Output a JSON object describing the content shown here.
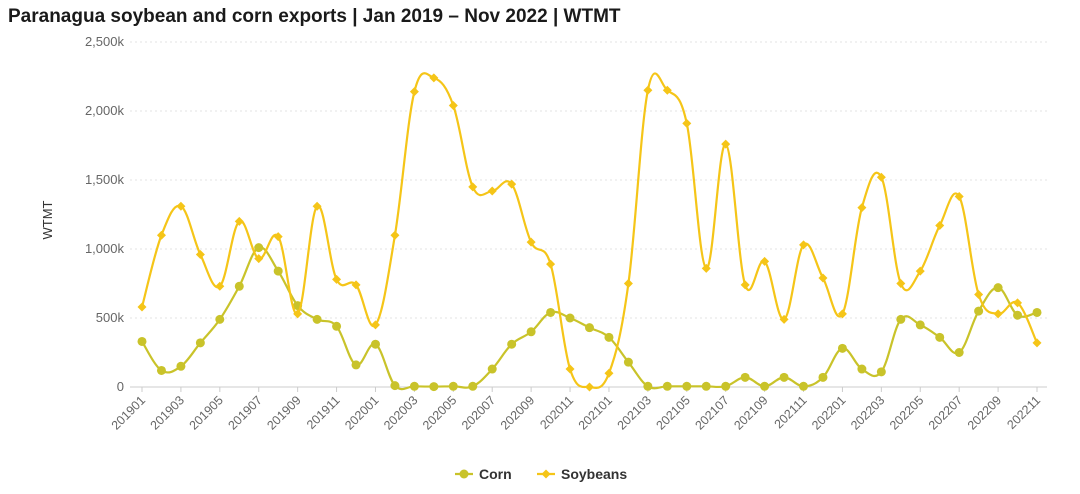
{
  "chart_data": {
    "type": "line",
    "title": "Paranagua soybean and corn exports | Jan 2019 – Nov 2022 | WTMT",
    "ylabel": "WTMT",
    "xlabel": "",
    "ylim": [
      0,
      2500000
    ],
    "y_ticks": [
      {
        "value": 0,
        "label": "0"
      },
      {
        "value": 500000,
        "label": "500k"
      },
      {
        "value": 1000000,
        "label": "1,000k"
      },
      {
        "value": 1500000,
        "label": "1,500k"
      },
      {
        "value": 2000000,
        "label": "2,000k"
      },
      {
        "value": 2500000,
        "label": "2,500k"
      }
    ],
    "x": [
      "201901",
      "201902",
      "201903",
      "201904",
      "201905",
      "201906",
      "201907",
      "201908",
      "201909",
      "201910",
      "201911",
      "201912",
      "202001",
      "202002",
      "202003",
      "202004",
      "202005",
      "202006",
      "202007",
      "202008",
      "202009",
      "202010",
      "202011",
      "202012",
      "202101",
      "202102",
      "202103",
      "202104",
      "202105",
      "202106",
      "202107",
      "202108",
      "202109",
      "202110",
      "202111",
      "202112",
      "202201",
      "202202",
      "202203",
      "202204",
      "202205",
      "202206",
      "202207",
      "202208",
      "202209",
      "202210",
      "202211"
    ],
    "x_tick_labels": [
      "201901",
      "201903",
      "201905",
      "201907",
      "201909",
      "201911",
      "202001",
      "202003",
      "202005",
      "202007",
      "202009",
      "202011",
      "202101",
      "202103",
      "202105",
      "202107",
      "202109",
      "202111",
      "202201",
      "202203",
      "202205",
      "202207",
      "202209",
      "202211"
    ],
    "grid": true,
    "legend": "bottom-center",
    "series": [
      {
        "name": "Corn",
        "color": "#c9c32a",
        "marker": "circle",
        "values": [
          330000,
          120000,
          150000,
          320000,
          490000,
          730000,
          1010000,
          840000,
          590000,
          490000,
          440000,
          160000,
          310000,
          10000,
          5000,
          3000,
          5000,
          5000,
          130000,
          310000,
          400000,
          540000,
          500000,
          430000,
          360000,
          180000,
          5000,
          5000,
          5000,
          5000,
          5000,
          70000,
          5000,
          70000,
          5000,
          70000,
          280000,
          130000,
          110000,
          490000,
          450000,
          360000,
          250000,
          550000,
          720000,
          520000,
          540000
        ]
      },
      {
        "name": "Soybeans",
        "color": "#f5c518",
        "marker": "diamond",
        "values": [
          580000,
          1100000,
          1310000,
          960000,
          730000,
          1200000,
          930000,
          1090000,
          530000,
          1310000,
          780000,
          740000,
          450000,
          1100000,
          2140000,
          2240000,
          2040000,
          1450000,
          1420000,
          1470000,
          1050000,
          890000,
          130000,
          0,
          100000,
          750000,
          2150000,
          2150000,
          1910000,
          860000,
          1760000,
          740000,
          910000,
          490000,
          1030000,
          790000,
          530000,
          1300000,
          1520000,
          750000,
          840000,
          1170000,
          1380000,
          670000,
          530000,
          610000,
          320000
        ]
      }
    ]
  }
}
